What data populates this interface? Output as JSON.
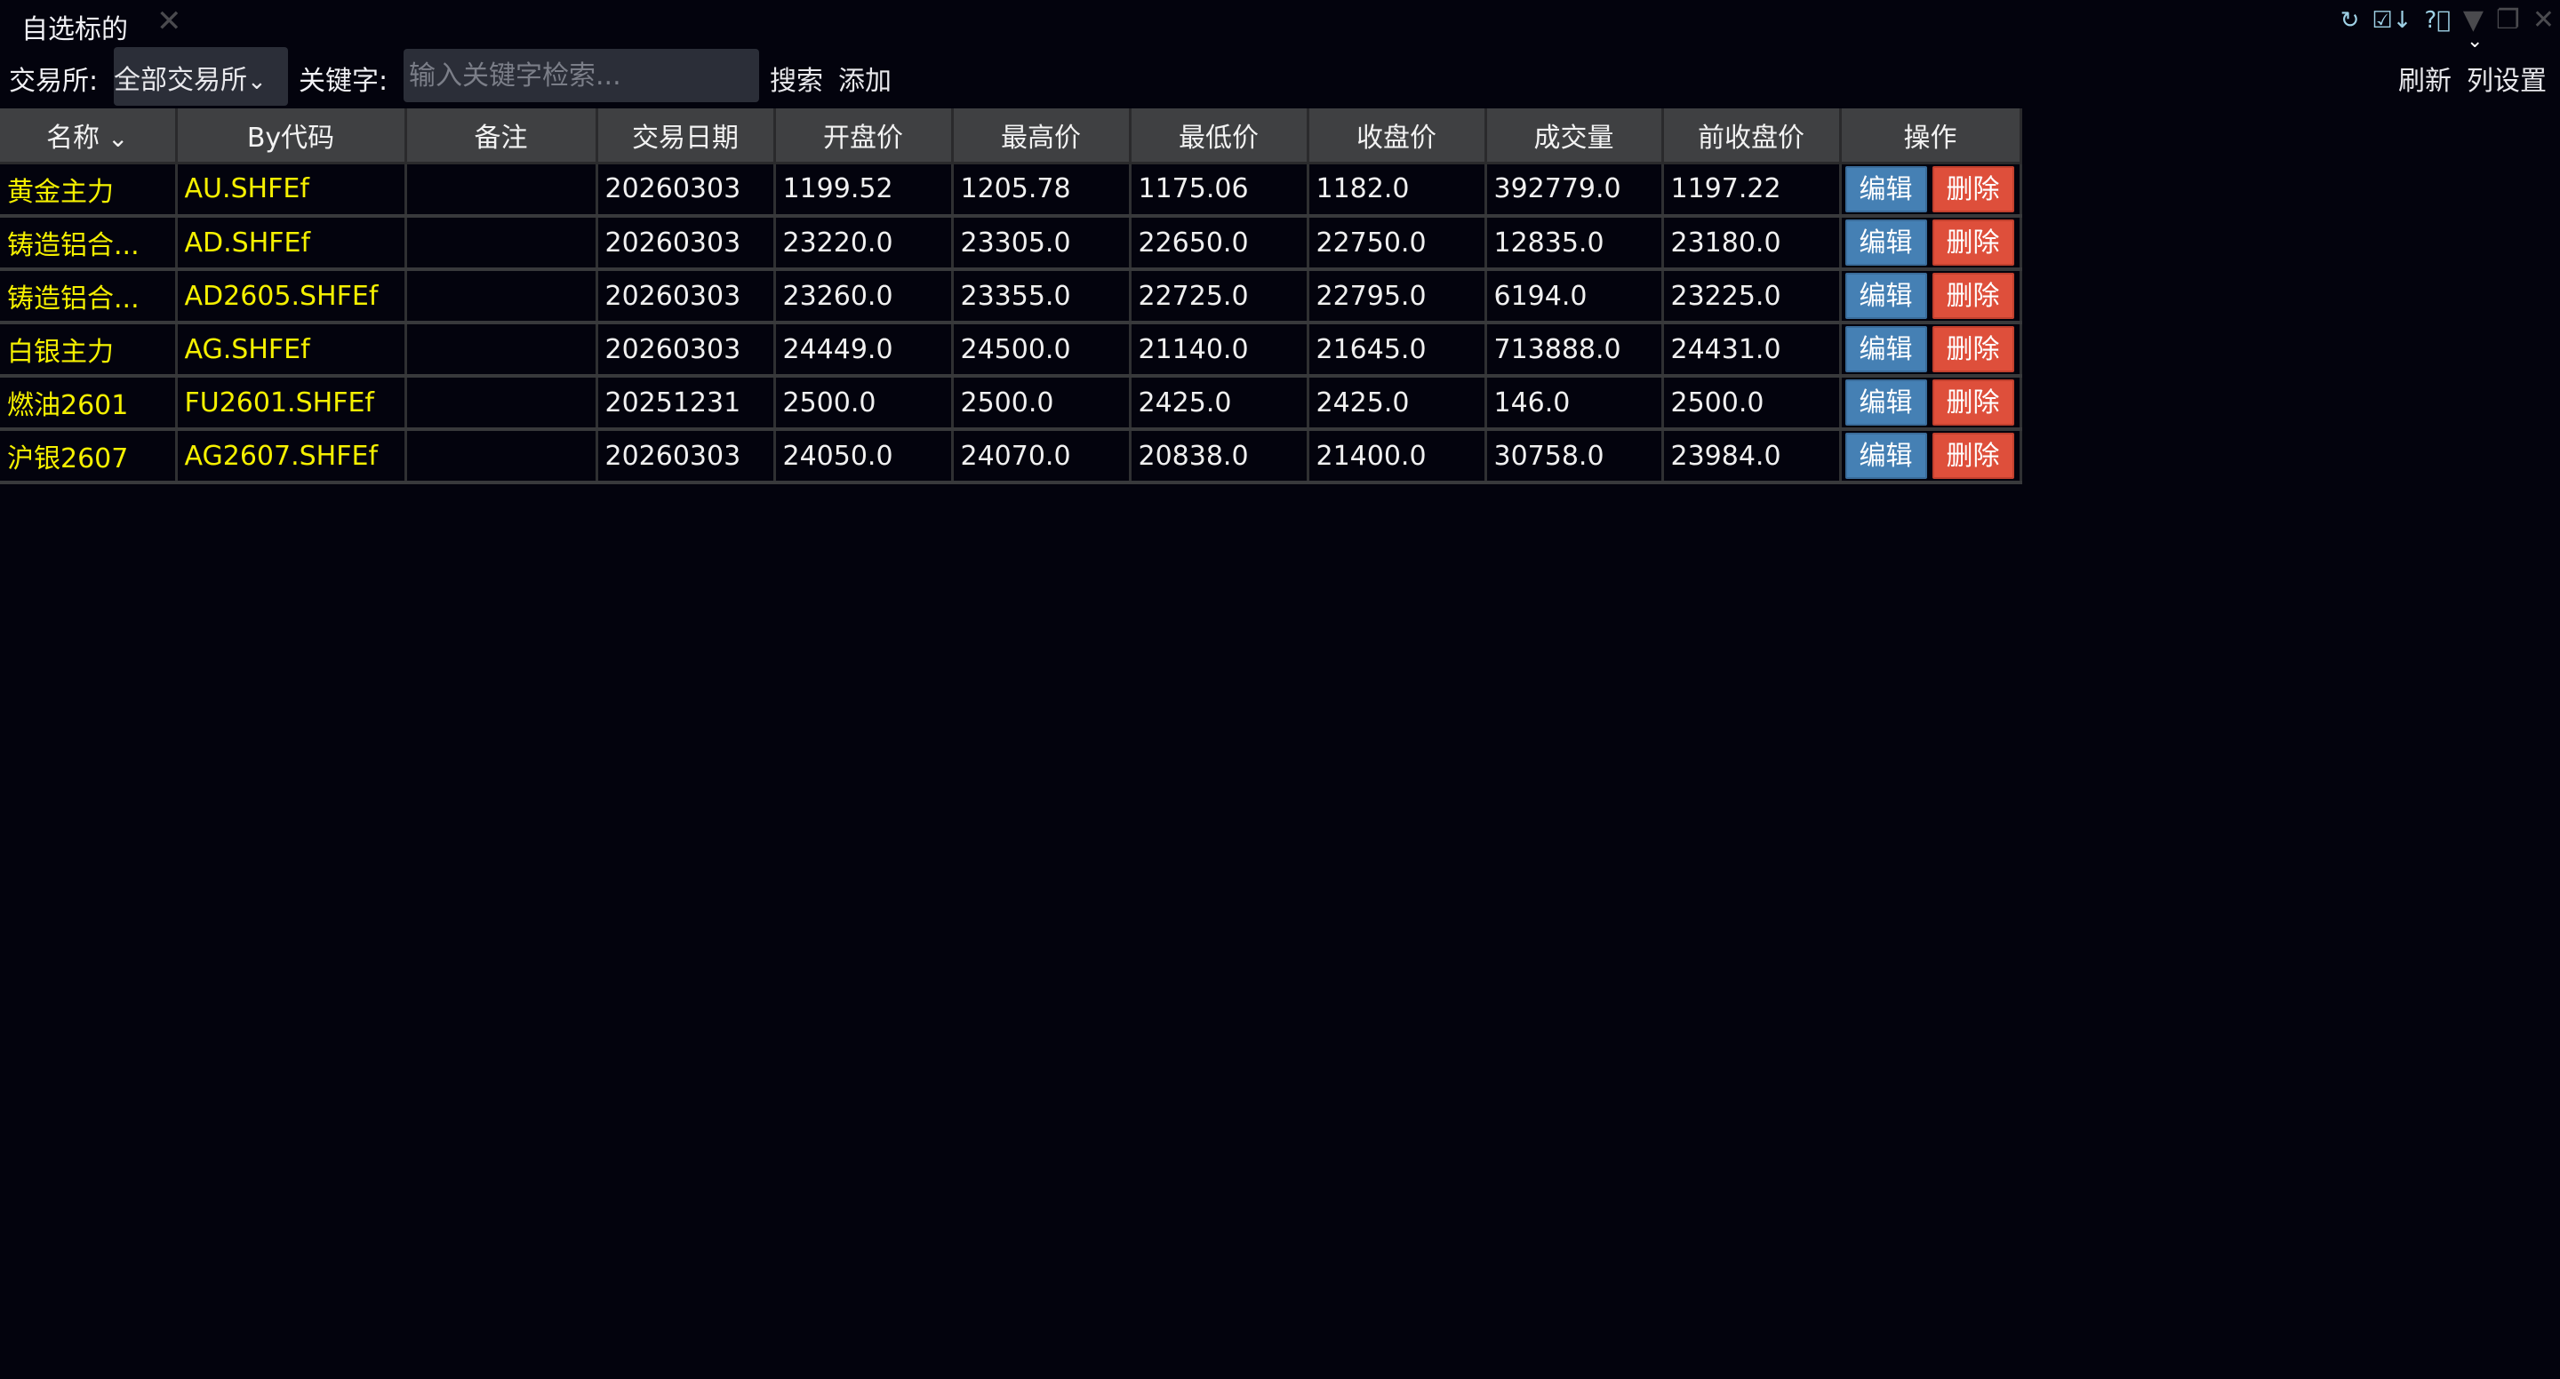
{
  "tab": {
    "title": "自选标的",
    "close": "✕"
  },
  "window_icons": [
    "refresh-icon",
    "column-sort-icon",
    "help-icon",
    "dropdown-triangle-icon",
    "restore-window-icon",
    "close-window-icon"
  ],
  "filter": {
    "exchange_label": "交易所:",
    "exchange_value": "全部交易所",
    "keyword_label": "关键字:",
    "keyword_placeholder": "输入关键字检索...",
    "keyword_value": "",
    "search": "搜索",
    "add": "添加",
    "refresh": "刷新",
    "column_settings": "列设置"
  },
  "table": {
    "columns": [
      "名称",
      "By代码",
      "备注",
      "交易日期",
      "开盘价",
      "最高价",
      "最低价",
      "收盘价",
      "成交量",
      "前收盘价",
      "操作"
    ],
    "rows": [
      [
        "黄金主力",
        "AU.SHFEf",
        "",
        "20260303",
        "1199.52",
        "1205.78",
        "1175.06",
        "1182.0",
        "392779.0",
        "1197.22"
      ],
      [
        "铸造铝合...",
        "AD.SHFEf",
        "",
        "20260303",
        "23220.0",
        "23305.0",
        "22650.0",
        "22750.0",
        "12835.0",
        "23180.0"
      ],
      [
        "铸造铝合...",
        "AD2605.SHFEf",
        "",
        "20260303",
        "23260.0",
        "23355.0",
        "22725.0",
        "22795.0",
        "6194.0",
        "23225.0"
      ],
      [
        "白银主力",
        "AG.SHFEf",
        "",
        "20260303",
        "24449.0",
        "24500.0",
        "21140.0",
        "21645.0",
        "713888.0",
        "24431.0"
      ],
      [
        "燃油2601",
        "FU2601.SHFEf",
        "",
        "20251231",
        "2500.0",
        "2500.0",
        "2425.0",
        "2425.0",
        "146.0",
        "2500.0"
      ],
      [
        "沪银2607",
        "AG2607.SHFEf",
        "",
        "20260303",
        "24050.0",
        "24070.0",
        "20838.0",
        "21400.0",
        "30758.0",
        "23984.0"
      ]
    ],
    "edit_label": "编辑",
    "delete_label": "删除"
  },
  "colors": {
    "background": "#03030d",
    "header": "#3f4042",
    "name_text": "#f5f000",
    "edit_button": "#4580b4",
    "delete_button": "#de4f3b"
  }
}
